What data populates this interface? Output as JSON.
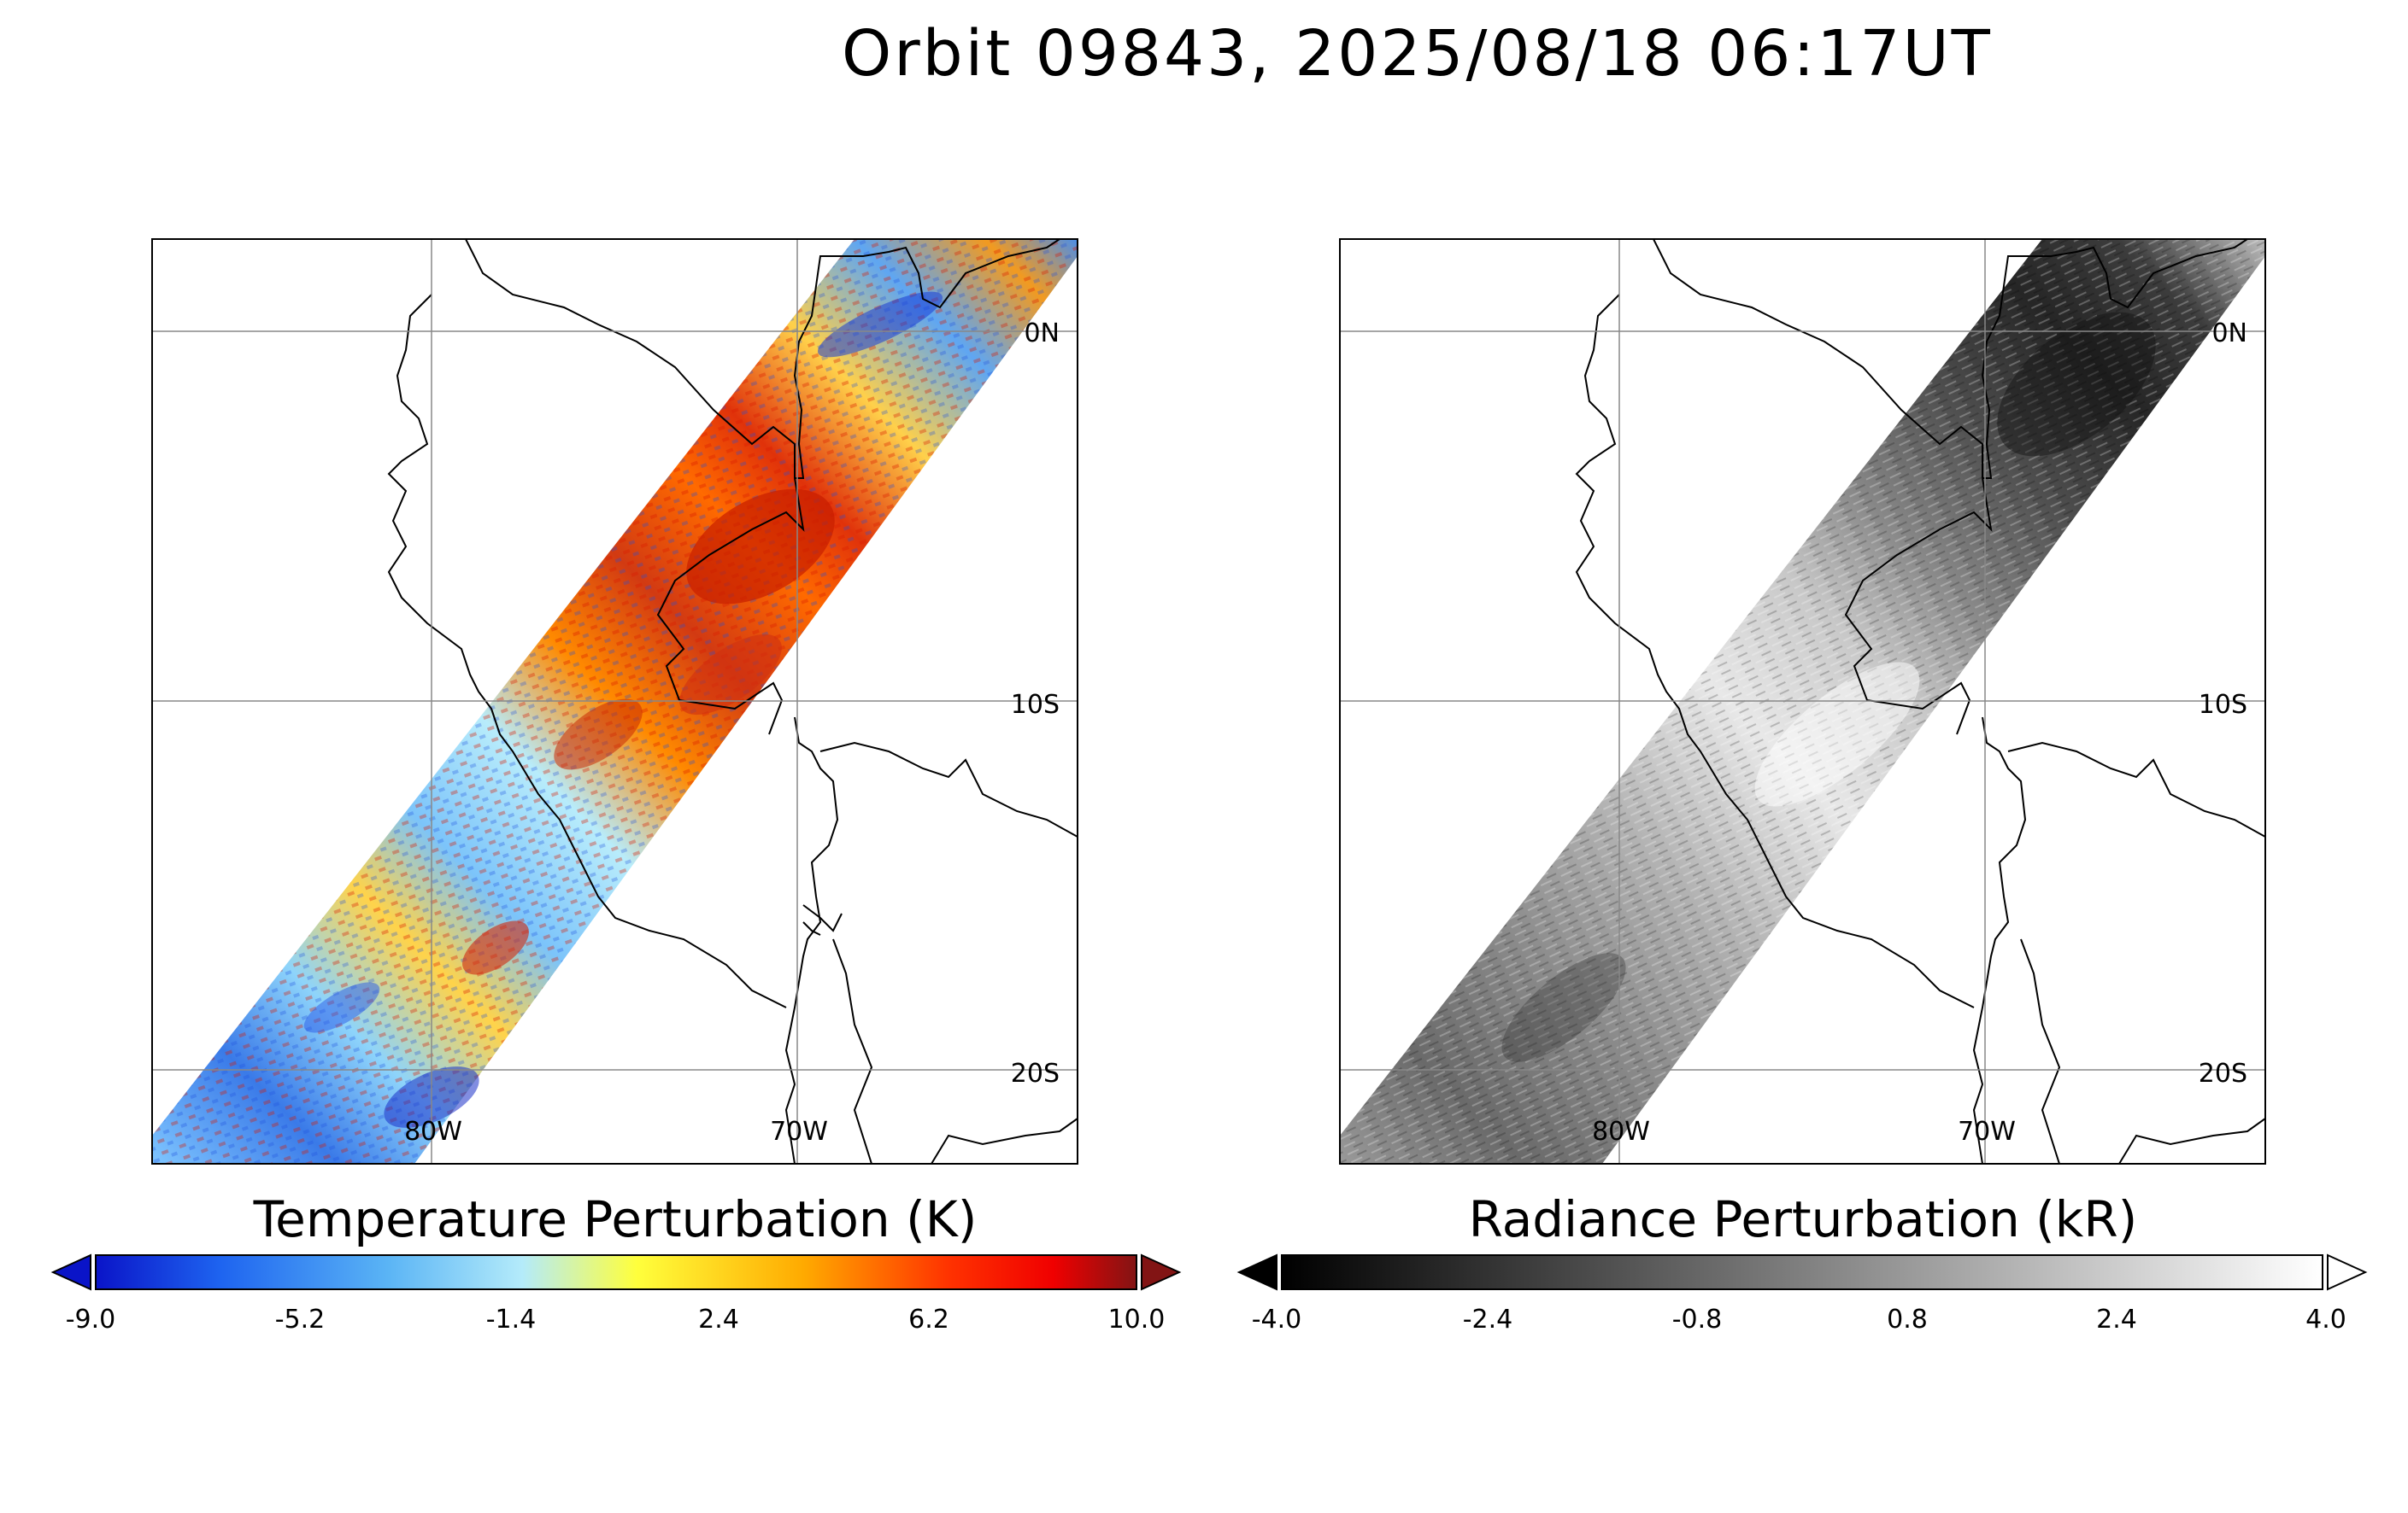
{
  "title": "Orbit 09843, 2025/08/18 06:17UT",
  "map_labels": {
    "lat": [
      "0N",
      "10S",
      "20S"
    ],
    "lon": [
      "80W",
      "70W"
    ]
  },
  "panels": [
    {
      "name": "temperature",
      "colorbar_label": "Temperature Perturbation (K)",
      "colorbar_ticks": [
        "-9.0",
        "-5.2",
        "-1.4",
        "2.4",
        "6.2",
        "10.0"
      ],
      "colors": [
        "#0a14c8",
        "#1e64f0",
        "#5ab4f5",
        "#b4ebfa",
        "#ffff3c",
        "#ffaa00",
        "#ff3200",
        "#f00000",
        "#821414"
      ]
    },
    {
      "name": "radiance",
      "colorbar_label": "Radiance Perturbation (kR)",
      "colorbar_ticks": [
        "-4.0",
        "-2.4",
        "-0.8",
        "0.8",
        "2.4",
        "4.0"
      ],
      "colors": [
        "#000000",
        "#ffffff"
      ]
    }
  ],
  "map_data": {
    "lat_range": [
      "2.5N",
      "22.5S"
    ],
    "lon_range": [
      "87.5W",
      "62.5W"
    ],
    "gridlines_lat": [
      "0N",
      "10S",
      "20S"
    ],
    "gridlines_lon": [
      "80W",
      "70W"
    ],
    "swath": "diagonal orbit track from southwest to northeast",
    "temperature_features": [
      "warm (red) perturbations over northern Peru near 5S-10S, 72W-76W",
      "cold (blue) perturbations near 0N-3S, 68W-72W",
      "alternating warm/cold wave bands south of 15S"
    ],
    "radiance_features": [
      "dark (negative) radiance in northern part of swath near 0N-5S",
      "bright (positive) radiance over central Peru near 10S-13S",
      "mixed gray in southern part of swath"
    ]
  }
}
